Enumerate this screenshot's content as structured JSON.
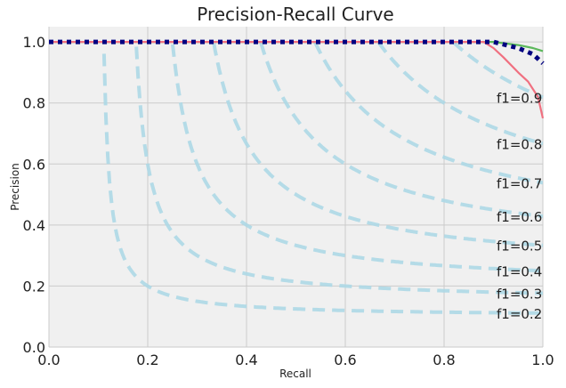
{
  "chart_data": {
    "type": "line",
    "title": "Precision-Recall Curve",
    "xlabel": "Recall",
    "ylabel": "Precision",
    "xlim": [
      0.0,
      1.0
    ],
    "ylim": [
      0.0,
      1.05
    ],
    "grid": true,
    "x_ticks": [
      "0.0",
      "0.2",
      "0.4",
      "0.6",
      "0.8",
      "1.0"
    ],
    "y_ticks": [
      "0.0",
      "0.2",
      "0.4",
      "0.6",
      "0.8",
      "1.0"
    ],
    "iso_f1_curves": [
      {
        "f1": 0.2,
        "label": "f1=0.2"
      },
      {
        "f1": 0.3,
        "label": "f1=0.3"
      },
      {
        "f1": 0.4,
        "label": "f1=0.4"
      },
      {
        "f1": 0.5,
        "label": "f1=0.5"
      },
      {
        "f1": 0.6,
        "label": "f1=0.6"
      },
      {
        "f1": 0.7,
        "label": "f1=0.7"
      },
      {
        "f1": 0.8,
        "label": "f1=0.8"
      },
      {
        "f1": 0.9,
        "label": "f1=0.9"
      }
    ],
    "series": [
      {
        "color": "#5cb85c",
        "style": "solid",
        "x": [
          0.0,
          0.2,
          0.4,
          0.6,
          0.8,
          0.9,
          0.95,
          0.98,
          1.0
        ],
        "y": [
          1.0,
          1.0,
          1.0,
          1.0,
          1.0,
          1.0,
          0.99,
          0.98,
          0.97
        ]
      },
      {
        "color": "#f07080",
        "style": "solid",
        "x": [
          0.0,
          0.2,
          0.4,
          0.6,
          0.8,
          0.88,
          0.9,
          0.92,
          0.95,
          0.97,
          0.99,
          1.0
        ],
        "y": [
          1.0,
          1.0,
          1.0,
          1.0,
          1.0,
          1.0,
          0.98,
          0.95,
          0.9,
          0.87,
          0.82,
          0.75
        ]
      },
      {
        "color": "#000080",
        "style": "dotted",
        "x": [
          0.0,
          0.2,
          0.4,
          0.6,
          0.8,
          0.9,
          0.95,
          0.98,
          1.0
        ],
        "y": [
          1.0,
          1.0,
          1.0,
          1.0,
          1.0,
          1.0,
          0.98,
          0.96,
          0.93
        ]
      }
    ]
  }
}
